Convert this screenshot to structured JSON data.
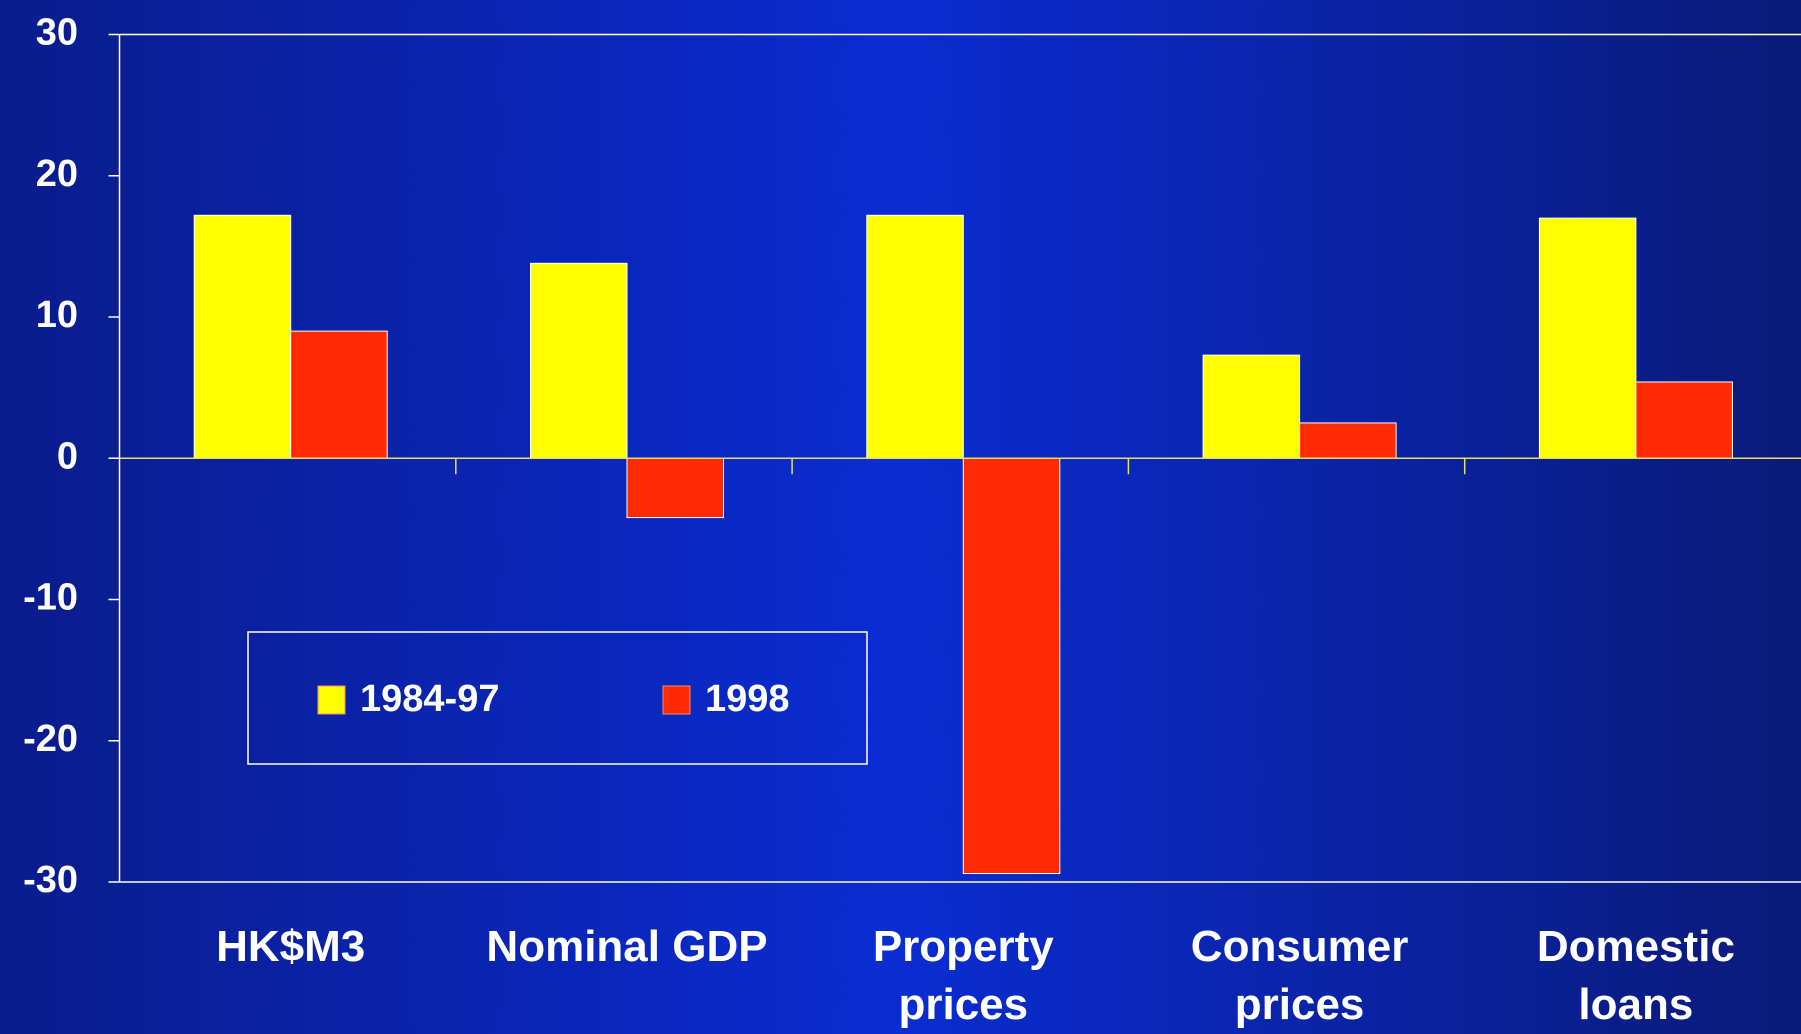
{
  "chart_data": {
    "type": "bar",
    "categories": [
      "HK$M3",
      "Nominal GDP",
      "Property prices",
      "Consumer prices",
      "Domestic loans"
    ],
    "series": [
      {
        "name": "1984-97",
        "color": "#ffff00",
        "values": [
          17.2,
          13.8,
          17.2,
          7.3,
          17.0
        ]
      },
      {
        "name": "1998",
        "color": "#ff2a00",
        "values": [
          9.0,
          -4.2,
          -29.4,
          2.5,
          5.4
        ]
      }
    ],
    "ylim": [
      -30,
      30
    ],
    "yticks": [
      -30,
      -20,
      -10,
      0,
      10,
      20,
      30
    ],
    "grid": false
  }
}
